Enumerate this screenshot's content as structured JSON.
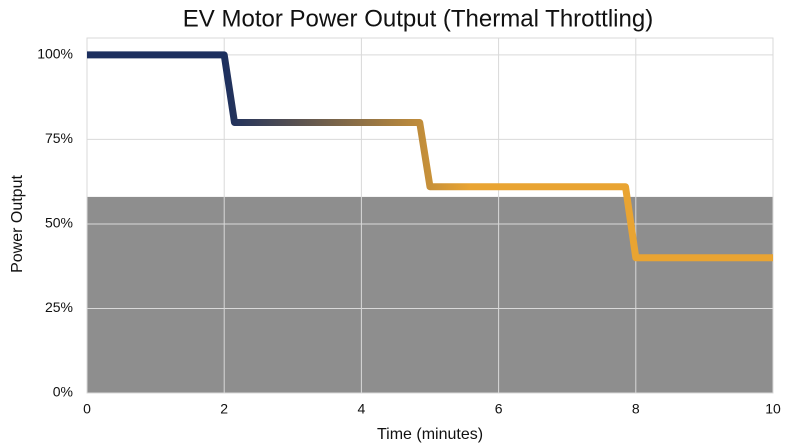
{
  "chart_data": {
    "type": "line",
    "title": "EV Motor Power Output (Thermal Throttling)",
    "x_label": "Time (minutes)",
    "y_label": "Power Output",
    "x": [
      0,
      2,
      2.15,
      4.85,
      5,
      7.85,
      8,
      10
    ],
    "series": [
      {
        "values": [
          100,
          100,
          80,
          80,
          61,
          61,
          40,
          40
        ],
        "gradient": [
          "#1c2f5e",
          "#e9a432"
        ]
      }
    ],
    "shaded_region": {
      "from": 0,
      "to": 58,
      "color": "#8e8e8e"
    },
    "xlim": [
      0,
      10
    ],
    "xticks": [
      0,
      2,
      4,
      6,
      8,
      10
    ],
    "ylim": [
      0,
      105
    ],
    "yticks": [
      {
        "value": 0,
        "label": "0%"
      },
      {
        "value": 25,
        "label": "25%"
      },
      {
        "value": 50,
        "label": "50%"
      },
      {
        "value": 75,
        "label": "75%"
      },
      {
        "value": 100,
        "label": "100%"
      }
    ],
    "grid": true
  }
}
